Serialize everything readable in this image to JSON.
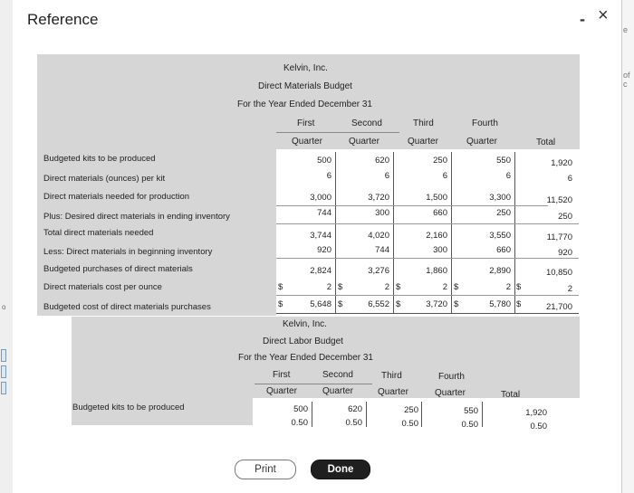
{
  "window": {
    "title": "Reference",
    "minimize": "-",
    "close": "×"
  },
  "edge": {
    "right_top": "e",
    "right_mid": "of c",
    "left_mark": "o"
  },
  "materials": {
    "company": "Kelvin, Inc.",
    "title": "Direct Materials Budget",
    "period": "For the Year Ended December 31",
    "columns": [
      {
        "top": "First",
        "bottom": "Quarter"
      },
      {
        "top": "Second",
        "bottom": "Quarter"
      },
      {
        "top": "Third",
        "bottom": "Quarter"
      },
      {
        "top": "Fourth",
        "bottom": "Quarter"
      },
      {
        "top": "",
        "bottom": "Total"
      }
    ],
    "rows": [
      {
        "label": "Budgeted kits to be produced",
        "values": [
          "500",
          "620",
          "250",
          "550",
          "1,920"
        ]
      },
      {
        "label": "Direct materials (ounces) per kit",
        "values": [
          "6",
          "6",
          "6",
          "6",
          "6"
        ]
      },
      {
        "label": "Direct materials needed for production",
        "values": [
          "3,000",
          "3,720",
          "1,500",
          "3,300",
          "11,520"
        ]
      },
      {
        "label": "Plus: Desired direct materials in ending inventory",
        "values": [
          "744",
          "300",
          "660",
          "250",
          "250"
        ]
      },
      {
        "label": "Total direct materials needed",
        "values": [
          "3,744",
          "4,020",
          "2,160",
          "3,550",
          "11,770"
        ]
      },
      {
        "label": "Less: Direct materials in beginning inventory",
        "values": [
          "920",
          "744",
          "300",
          "660",
          "920"
        ]
      },
      {
        "label": "Budgeted purchases of direct materials",
        "values": [
          "2,824",
          "3,276",
          "1,860",
          "2,890",
          "10,850"
        ]
      },
      {
        "label": "Direct materials cost per ounce",
        "values": [
          "2",
          "2",
          "2",
          "2",
          "2"
        ]
      },
      {
        "label": "Budgeted cost of direct materials purchases",
        "values": [
          "5,648",
          "6,552",
          "3,720",
          "5,780",
          "21,700"
        ]
      }
    ],
    "currency": "$"
  },
  "labor": {
    "company": "Kelvin, Inc.",
    "title": "Direct Labor Budget",
    "period": "For the Year Ended December 31",
    "columns": [
      {
        "top": "First",
        "bottom": "Quarter"
      },
      {
        "top": "Second",
        "bottom": "Quarter"
      },
      {
        "top": "Third",
        "bottom": "Quarter"
      },
      {
        "top": "Fourth",
        "bottom": "Quarter"
      },
      {
        "top": "",
        "bottom": "Total"
      }
    ],
    "rows": [
      {
        "label": "Budgeted kits to be produced",
        "values": [
          "500",
          "620",
          "250",
          "550",
          "1,920"
        ]
      },
      {
        "label": "",
        "values": [
          "0.50",
          "0.50",
          "0.50",
          "0.50",
          "0.50"
        ]
      }
    ]
  },
  "buttons": {
    "print": "Print",
    "done": "Done"
  }
}
